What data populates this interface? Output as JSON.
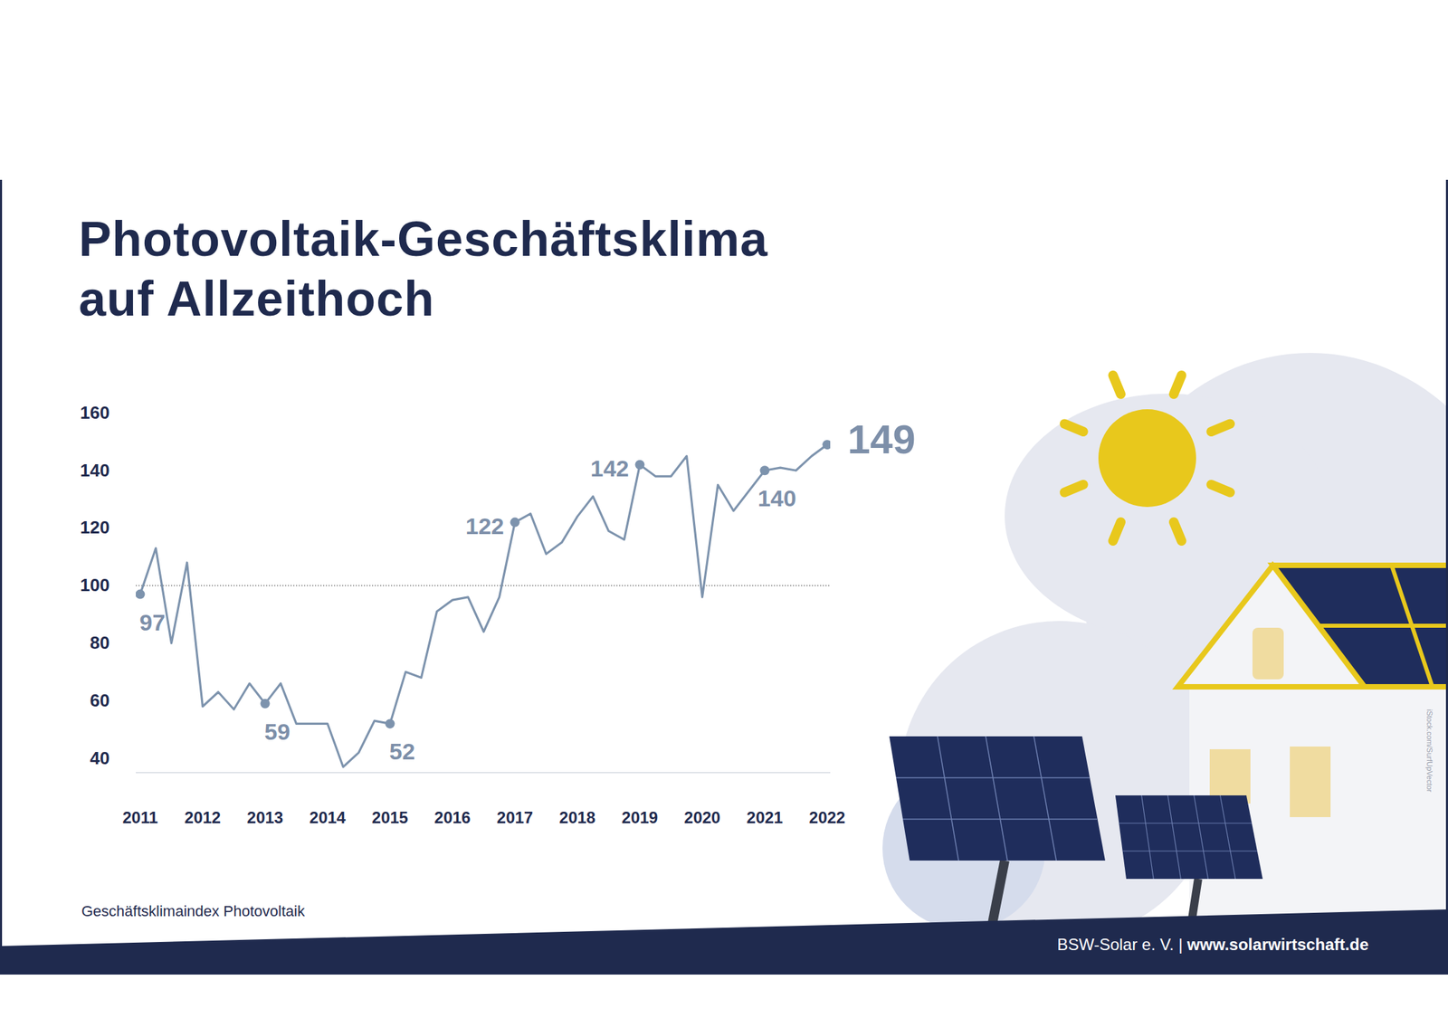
{
  "chart_data": {
    "type": "line",
    "title": "Photovoltaik-Geschäftsklima auf Allzeithoch",
    "caption": "Geschäftsklimaindex Photovoltaik",
    "footer": "BSW-Solar e. V. | www.solarwirtschaft.de",
    "image_credit": "iStock.com/SurfUpVector",
    "categories": [
      "2011",
      null,
      null,
      null,
      "2012",
      null,
      null,
      null,
      "2013",
      null,
      null,
      null,
      "2014",
      null,
      null,
      null,
      "2015",
      null,
      null,
      null,
      "2016",
      null,
      null,
      null,
      "2017",
      null,
      null,
      null,
      "2018",
      null,
      null,
      null,
      "2019",
      null,
      null,
      null,
      "2020",
      null,
      null,
      null,
      "2021",
      null,
      null,
      null,
      "2022"
    ],
    "values": [
      97,
      113,
      80,
      108,
      58,
      63,
      57,
      66,
      59,
      66,
      52,
      52,
      52,
      37,
      42,
      53,
      52,
      70,
      68,
      91,
      95,
      96,
      84,
      96,
      122,
      125,
      111,
      115,
      124,
      131,
      119,
      116,
      142,
      138,
      138,
      145,
      96,
      135,
      126,
      133,
      140,
      141,
      140,
      145,
      149
    ],
    "value_labels": [
      "97",
      null,
      null,
      null,
      null,
      null,
      null,
      null,
      "59",
      null,
      null,
      null,
      null,
      null,
      null,
      null,
      "52",
      null,
      null,
      null,
      null,
      null,
      null,
      null,
      "122",
      null,
      null,
      null,
      null,
      null,
      null,
      null,
      "142",
      null,
      null,
      null,
      null,
      null,
      null,
      null,
      "140",
      null,
      null,
      null,
      "149"
    ],
    "data_labels": true,
    "color": "#7d93ad",
    "marker": "circle",
    "reference_line": 100,
    "ylim": [
      35,
      160
    ],
    "yticks": [
      40,
      60,
      80,
      100,
      120,
      140,
      160
    ],
    "grid": false
  }
}
